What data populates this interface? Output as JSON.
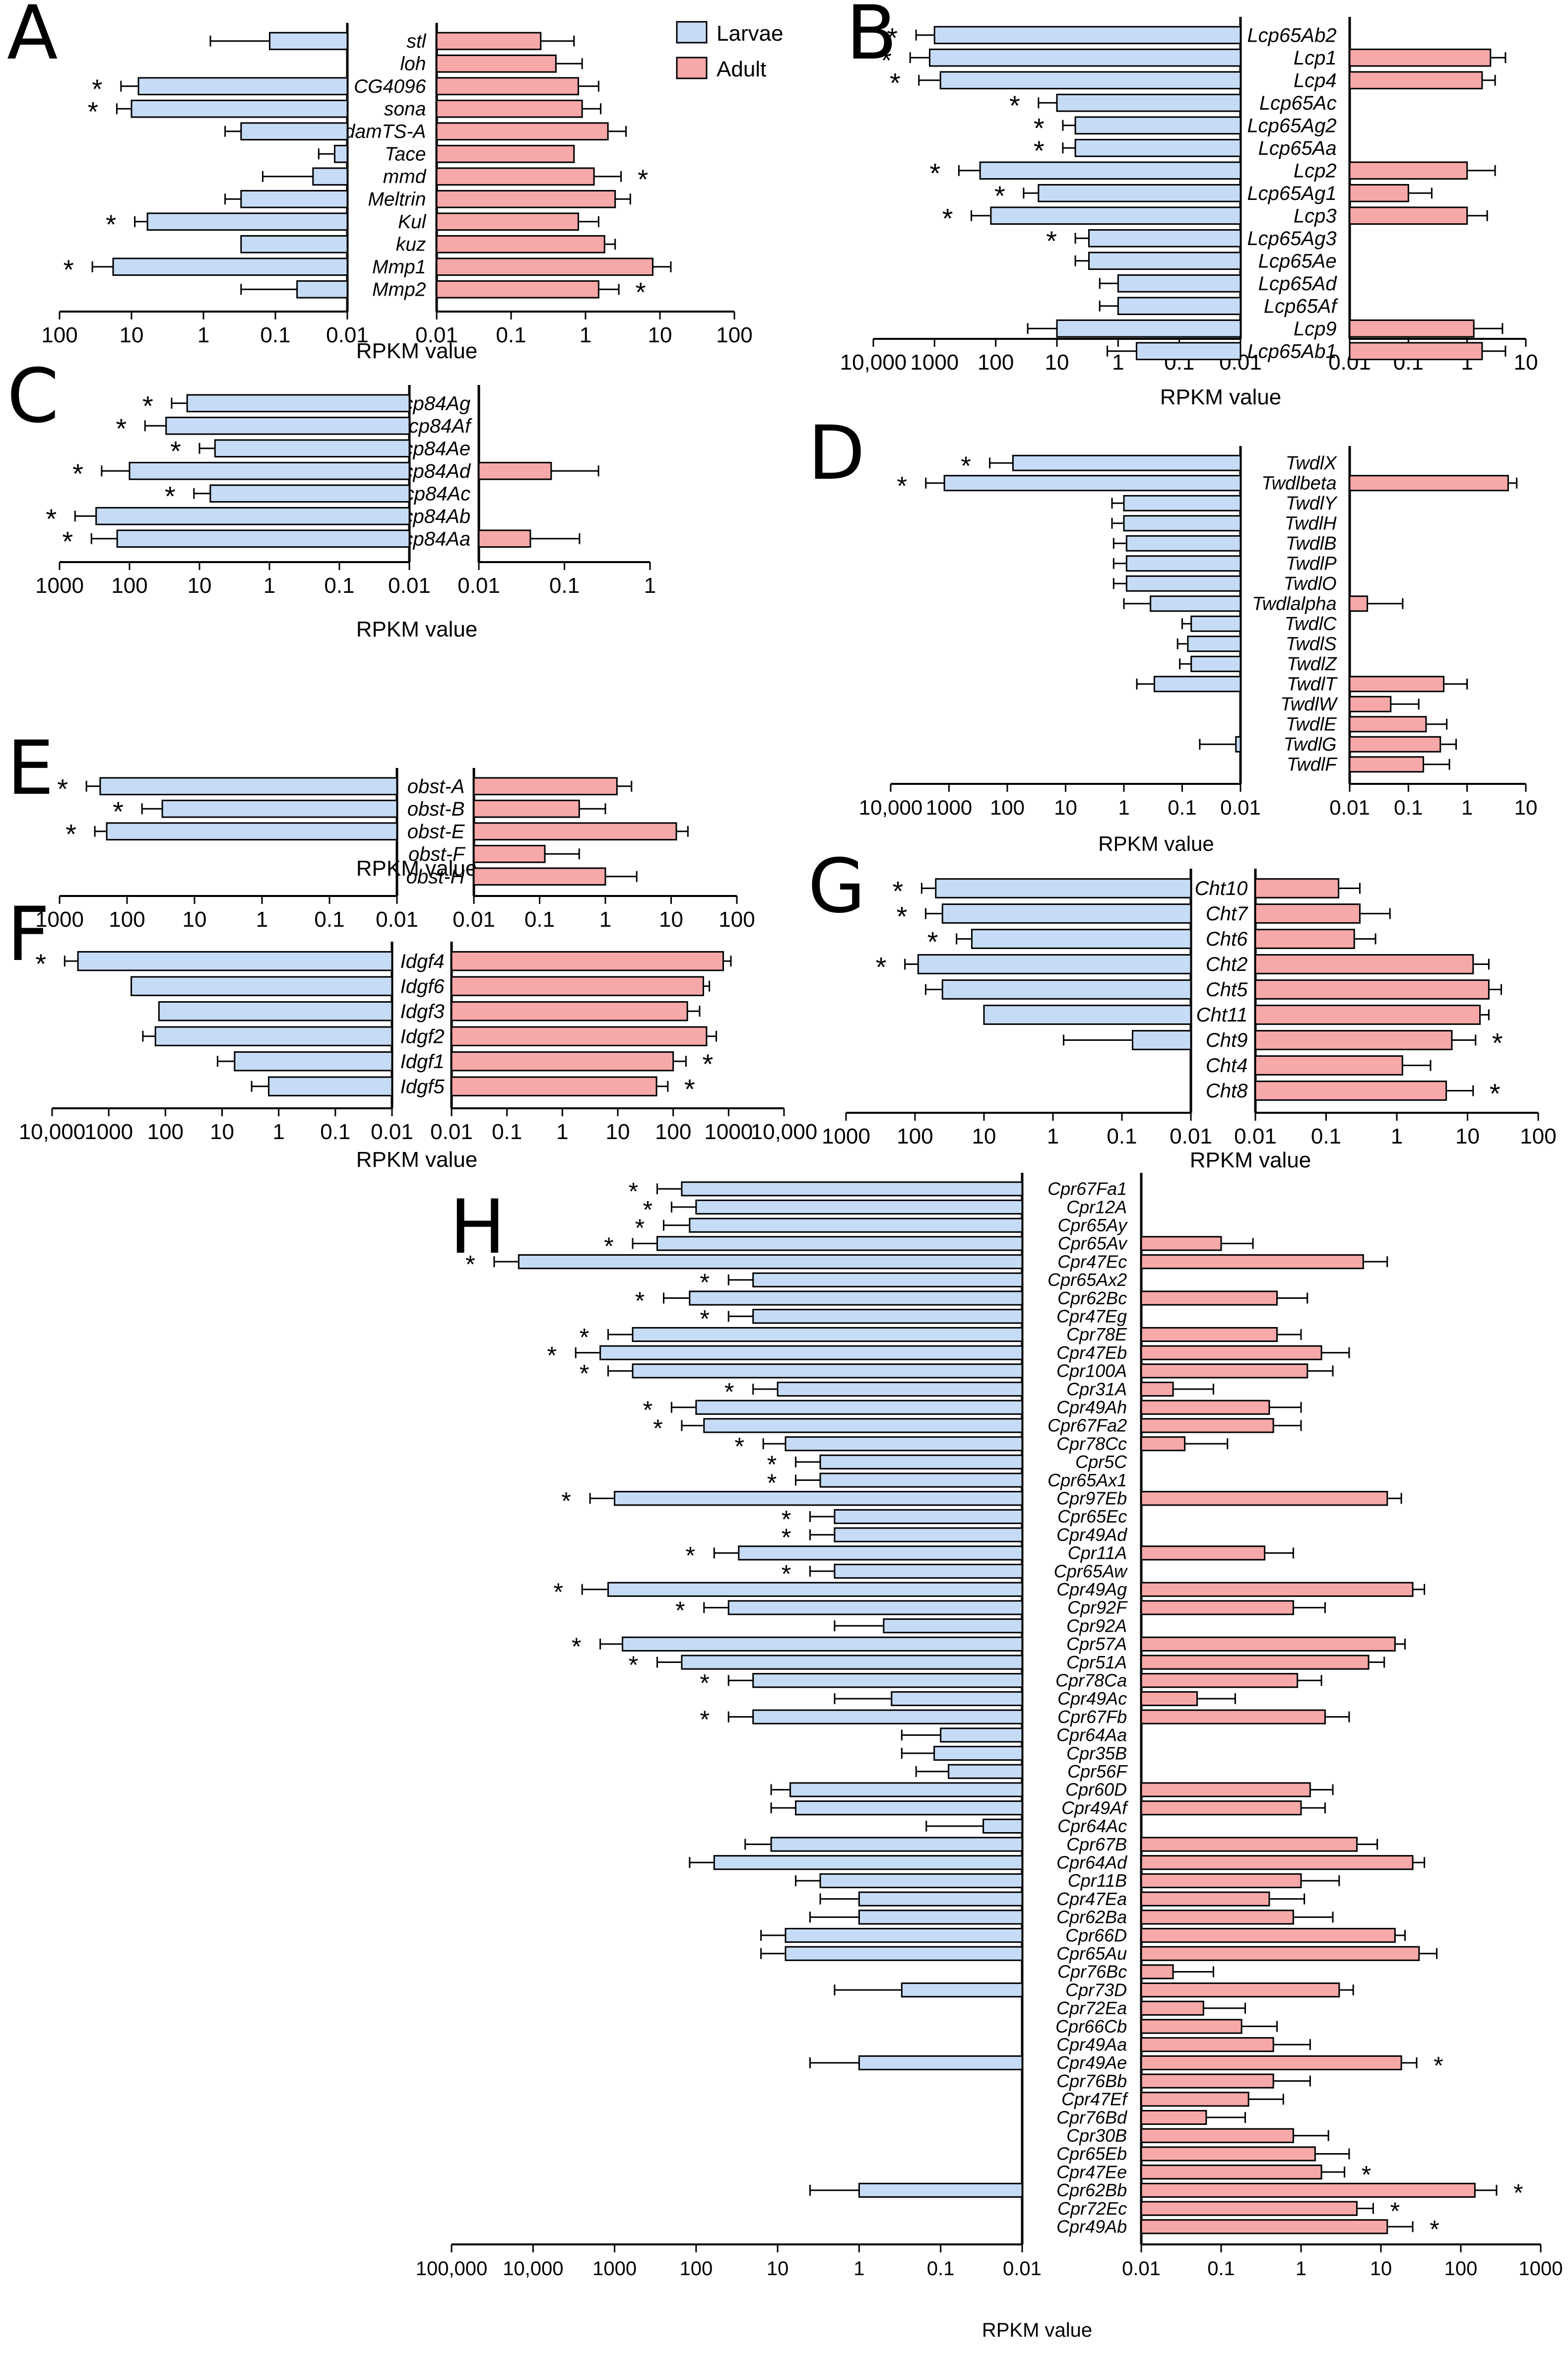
{
  "legend": [
    {
      "name": "Larvae",
      "color": "#c6dbf5"
    },
    {
      "name": "Adult",
      "color": "#f7a8a8"
    }
  ],
  "colors": {
    "larvae": "#c6dbf5",
    "adult": "#f7a8a8",
    "stroke": "#000000"
  },
  "chart_data": [
    {
      "panel": "A",
      "type": "bar",
      "orientation": "horizontal",
      "scale": "log",
      "xlabel": "RPKM value",
      "larvae_ticks": [
        "100",
        "10",
        "1",
        "0.1",
        "0.01"
      ],
      "adult_ticks": [
        "0.01",
        "0.1",
        "1",
        "10",
        "100"
      ],
      "larvae_range": [
        100,
        0.01
      ],
      "adult_range": [
        0.01,
        100
      ],
      "categories": [
        "stl",
        "loh",
        "CG4096",
        "sona",
        "AdamTS-A",
        "Tace",
        "mmd",
        "Meltrin",
        "Kul",
        "kuz",
        "Mmp1",
        "Mmp2"
      ],
      "larvae": [
        0.12,
        null,
        8,
        10,
        0.3,
        0.015,
        0.03,
        0.3,
        6,
        0.3,
        18,
        0.05
      ],
      "larvae_err": [
        0.8,
        null,
        14,
        16,
        0.5,
        0.025,
        0.15,
        0.5,
        9,
        null,
        35,
        0.3
      ],
      "adult": [
        0.25,
        0.4,
        0.8,
        0.9,
        2,
        0.7,
        1.3,
        2.5,
        0.8,
        1.8,
        8,
        1.5
      ],
      "adult_err": [
        0.7,
        0.9,
        1.5,
        1.6,
        3.5,
        null,
        3,
        4,
        1.5,
        2.5,
        14,
        2.8
      ],
      "larvae_sig": [
        false,
        false,
        true,
        true,
        false,
        false,
        false,
        false,
        true,
        false,
        true,
        false
      ],
      "adult_sig": [
        false,
        false,
        false,
        false,
        false,
        false,
        true,
        false,
        false,
        false,
        false,
        true
      ]
    },
    {
      "panel": "B",
      "type": "bar",
      "orientation": "horizontal",
      "scale": "log",
      "xlabel": "RPKM value",
      "larvae_ticks": [
        "10,000",
        "1000",
        "100",
        "10",
        "1",
        "0.1",
        "0.01"
      ],
      "adult_ticks": [
        "0.01",
        "0.1",
        "1",
        "10"
      ],
      "larvae_range": [
        10000,
        0.01
      ],
      "adult_range": [
        0.01,
        10
      ],
      "categories": [
        "Lcp65Ab2",
        "Lcp1",
        "Lcp4",
        "Lcp65Ac",
        "Lcp65Ag2",
        "Lcp65Aa",
        "Lcp2",
        "Lcp65Ag1",
        "Lcp3",
        "Lcp65Ag3",
        "Lcp65Ae",
        "Lcp65Ad",
        "Lcp65Af",
        "Lcp9",
        "Lcp65Ab1"
      ],
      "larvae": [
        1000,
        1200,
        800,
        10,
        5,
        5,
        180,
        20,
        120,
        3,
        3,
        1,
        1,
        10,
        0.5
      ],
      "larvae_err": [
        2000,
        2500,
        1800,
        20,
        8,
        8,
        400,
        35,
        250,
        5,
        5,
        2,
        2,
        30,
        1.5
      ],
      "adult": [
        null,
        2.5,
        1.8,
        null,
        null,
        null,
        1,
        0.1,
        1,
        null,
        null,
        null,
        null,
        1.3,
        1.8
      ],
      "adult_err": [
        null,
        4.5,
        3,
        null,
        null,
        null,
        3,
        0.25,
        2.2,
        null,
        null,
        null,
        null,
        4,
        4.5
      ],
      "larvae_sig": [
        true,
        true,
        true,
        true,
        true,
        true,
        true,
        true,
        true,
        true,
        false,
        false,
        false,
        false,
        false
      ],
      "adult_sig": [
        false,
        false,
        false,
        false,
        false,
        false,
        false,
        false,
        false,
        false,
        false,
        false,
        false,
        false,
        false
      ]
    },
    {
      "panel": "C",
      "type": "bar",
      "orientation": "horizontal",
      "scale": "log",
      "xlabel": "RPKM value",
      "larvae_ticks": [
        "1000",
        "100",
        "10",
        "1",
        "0.1",
        "0.01"
      ],
      "adult_ticks": [
        "0.01",
        "0.1",
        "1"
      ],
      "larvae_range": [
        1000,
        0.01
      ],
      "adult_range": [
        0.01,
        1
      ],
      "categories": [
        "Ccp84Ag",
        "Ccp84Af",
        "Ccp84Ae",
        "Ccp84Ad",
        "Ccp84Ac",
        "Ccp84Ab",
        "Ccp84Aa"
      ],
      "larvae": [
        15,
        30,
        6,
        100,
        7,
        300,
        150
      ],
      "larvae_err": [
        25,
        60,
        10,
        250,
        12,
        600,
        350
      ],
      "adult": [
        null,
        null,
        null,
        0.07,
        null,
        null,
        0.04
      ],
      "adult_err": [
        null,
        null,
        null,
        0.25,
        null,
        null,
        0.15
      ],
      "larvae_sig": [
        true,
        true,
        true,
        true,
        true,
        true,
        true
      ],
      "adult_sig": [
        false,
        false,
        false,
        false,
        false,
        false,
        false
      ]
    },
    {
      "panel": "D",
      "type": "bar",
      "orientation": "horizontal",
      "scale": "log",
      "xlabel": "RPKM value",
      "larvae_ticks": [
        "10,000",
        "1000",
        "100",
        "10",
        "1",
        "0.1",
        "0.01"
      ],
      "adult_ticks": [
        "0.01",
        "0.1",
        "1",
        "10"
      ],
      "larvae_range": [
        10000,
        0.01
      ],
      "adult_range": [
        0.01,
        10
      ],
      "categories": [
        "TwdlX",
        "Twdlbeta",
        "TwdlY",
        "TwdlH",
        "TwdlB",
        "TwdlP",
        "TwdlO",
        "Twdlalpha",
        "TwdlC",
        "TwdlS",
        "TwdlZ",
        "TwdlT",
        "TwdlW",
        "TwdlE",
        "TwdlG",
        "TwdlF"
      ],
      "larvae": [
        80,
        1200,
        1,
        1,
        0.9,
        0.9,
        0.9,
        0.35,
        0.07,
        0.08,
        0.07,
        0.3,
        null,
        null,
        0.012,
        null
      ],
      "larvae_err": [
        200,
        2500,
        1.6,
        1.6,
        1.5,
        1.5,
        1.5,
        1,
        0.1,
        0.12,
        0.11,
        0.6,
        null,
        null,
        0.05,
        null
      ],
      "adult": [
        null,
        5,
        null,
        null,
        null,
        null,
        null,
        0.02,
        null,
        null,
        null,
        0.4,
        0.05,
        0.2,
        0.35,
        0.18
      ],
      "adult_err": [
        null,
        7,
        null,
        null,
        null,
        null,
        null,
        0.08,
        null,
        null,
        null,
        1,
        0.15,
        0.45,
        0.65,
        0.5
      ],
      "larvae_sig": [
        true,
        true,
        false,
        false,
        false,
        false,
        false,
        false,
        false,
        false,
        false,
        false,
        false,
        false,
        false,
        false
      ],
      "adult_sig": [
        false,
        false,
        false,
        false,
        false,
        false,
        false,
        false,
        false,
        false,
        false,
        false,
        false,
        false,
        false,
        false
      ]
    },
    {
      "panel": "E",
      "type": "bar",
      "orientation": "horizontal",
      "scale": "log",
      "xlabel": "RPKM value",
      "larvae_ticks": [
        "1000",
        "100",
        "10",
        "1",
        "0.1",
        "0.01"
      ],
      "adult_ticks": [
        "0.01",
        "0.1",
        "1",
        "10",
        "100"
      ],
      "larvae_range": [
        1000,
        0.01
      ],
      "adult_range": [
        0.01,
        100
      ],
      "categories": [
        "obst-A",
        "obst-B",
        "obst-E",
        "obst-F",
        "obst-H"
      ],
      "larvae": [
        250,
        30,
        200,
        null,
        null
      ],
      "larvae_err": [
        400,
        60,
        300,
        null,
        null
      ],
      "adult": [
        1.5,
        0.4,
        12,
        0.12,
        1
      ],
      "adult_err": [
        2.5,
        1,
        18,
        0.4,
        3
      ],
      "larvae_sig": [
        true,
        true,
        true,
        false,
        false
      ],
      "adult_sig": [
        false,
        false,
        false,
        false,
        false
      ]
    },
    {
      "panel": "F",
      "type": "bar",
      "orientation": "horizontal",
      "scale": "log",
      "xlabel": "RPKM value",
      "larvae_ticks": [
        "10,000",
        "1000",
        "100",
        "10",
        "1",
        "0.1",
        "0.01"
      ],
      "adult_ticks": [
        "0.01",
        "0.1",
        "1",
        "10",
        "100",
        "1000",
        "10,000"
      ],
      "larvae_range": [
        10000,
        0.01
      ],
      "adult_range": [
        0.01,
        10000
      ],
      "categories": [
        "Idgf4",
        "Idgf6",
        "Idgf3",
        "Idgf2",
        "Idgf1",
        "Idgf5"
      ],
      "larvae": [
        3500,
        400,
        130,
        150,
        6,
        1.5
      ],
      "larvae_err": [
        6000,
        null,
        null,
        250,
        12,
        3
      ],
      "adult": [
        800,
        350,
        180,
        400,
        100,
        50
      ],
      "adult_err": [
        1100,
        450,
        300,
        600,
        170,
        80
      ],
      "larvae_sig": [
        true,
        false,
        false,
        false,
        false,
        false
      ],
      "adult_sig": [
        false,
        false,
        false,
        false,
        true,
        true
      ]
    },
    {
      "panel": "G",
      "type": "bar",
      "orientation": "horizontal",
      "scale": "log",
      "xlabel": "RPKM value",
      "larvae_ticks": [
        "1000",
        "100",
        "10",
        "1",
        "0.1",
        "0.01"
      ],
      "adult_ticks": [
        "0.01",
        "0.1",
        "1",
        "10",
        "100"
      ],
      "larvae_range": [
        1000,
        0.01
      ],
      "adult_range": [
        0.01,
        100
      ],
      "categories": [
        "Cht10",
        "Cht7",
        "Cht6",
        "Cht2",
        "Cht5",
        "Cht11",
        "Cht9",
        "Cht4",
        "Cht8"
      ],
      "larvae": [
        50,
        40,
        15,
        90,
        40,
        10,
        0.07,
        null,
        null
      ],
      "larvae_err": [
        80,
        70,
        25,
        140,
        70,
        null,
        0.7,
        null,
        null
      ],
      "adult": [
        0.15,
        0.3,
        0.25,
        12,
        20,
        15,
        6,
        1.2,
        5
      ],
      "adult_err": [
        0.3,
        0.8,
        0.5,
        20,
        30,
        20,
        13,
        3,
        12
      ],
      "larvae_sig": [
        true,
        true,
        true,
        true,
        false,
        false,
        false,
        false,
        false
      ],
      "adult_sig": [
        false,
        false,
        false,
        false,
        false,
        false,
        true,
        false,
        true
      ]
    },
    {
      "panel": "H",
      "type": "bar",
      "orientation": "horizontal",
      "scale": "log",
      "xlabel": "RPKM value",
      "larvae_ticks": [
        "100,000",
        "10,000",
        "1000",
        "100",
        "10",
        "1",
        "0.1",
        "0.01"
      ],
      "adult_ticks": [
        "0.01",
        "0.1",
        "1",
        "10",
        "100",
        "1000"
      ],
      "larvae_range": [
        100000,
        0.01
      ],
      "adult_range": [
        0.01,
        1000
      ],
      "categories": [
        "Cpr67Fa1",
        "Cpr12A",
        "Cpr65Ay",
        "Cpr65Av",
        "Cpr47Ec",
        "Cpr65Ax2",
        "Cpr62Bc",
        "Cpr47Eg",
        "Cpr78E",
        "Cpr47Eb",
        "Cpr100A",
        "Cpr31A",
        "Cpr49Ah",
        "Cpr67Fa2",
        "Cpr78Cc",
        "Cpr5C",
        "Cpr65Ax1",
        "Cpr97Eb",
        "Cpr65Ec",
        "Cpr49Ad",
        "Cpr11A",
        "Cpr65Aw",
        "Cpr49Ag",
        "Cpr92F",
        "Cpr92A",
        "Cpr57A",
        "Cpr51A",
        "Cpr78Ca",
        "Cpr49Ac",
        "Cpr67Fb",
        "Cpr64Aa",
        "Cpr35B",
        "Cpr56F",
        "Cpr60D",
        "Cpr49Af",
        "Cpr64Ac",
        "Cpr67B",
        "Cpr64Ad",
        "Cpr11B",
        "Cpr47Ea",
        "Cpr62Ba",
        "Cpr66D",
        "Cpr65Au",
        "Cpr76Bc",
        "Cpr73D",
        "Cpr72Ea",
        "Cpr66Cb",
        "Cpr49Aa",
        "Cpr49Ae",
        "Cpr76Bb",
        "Cpr47Ef",
        "Cpr76Bd",
        "Cpr30B",
        "Cpr65Eb",
        "Cpr47Ee",
        "Cpr62Bb",
        "Cpr72Ec",
        "Cpr49Ab"
      ],
      "larvae": [
        150,
        100,
        120,
        300,
        15000,
        20,
        120,
        20,
        600,
        1500,
        600,
        10,
        100,
        80,
        8,
        3,
        3,
        1000,
        2,
        2,
        30,
        2,
        1200,
        40,
        0.5,
        800,
        150,
        20,
        0.4,
        20,
        0.1,
        0.12,
        0.08,
        7,
        6,
        0.03,
        12,
        60,
        3,
        1,
        1,
        8,
        8,
        null,
        0.3,
        null,
        null,
        null,
        1,
        null,
        null,
        null,
        null,
        null,
        null,
        1,
        null,
        null
      ],
      "larvae_err": [
        300,
        200,
        250,
        600,
        30000,
        40,
        250,
        40,
        1200,
        3000,
        1200,
        20,
        200,
        150,
        15,
        6,
        6,
        2000,
        4,
        4,
        60,
        4,
        2500,
        80,
        2,
        1500,
        300,
        40,
        2,
        40,
        0.3,
        0.3,
        0.2,
        12,
        12,
        0.15,
        25,
        120,
        6,
        3,
        4,
        16,
        16,
        null,
        2,
        null,
        null,
        null,
        4,
        null,
        null,
        null,
        null,
        null,
        null,
        4,
        null,
        null
      ],
      "adult": [
        null,
        null,
        null,
        0.1,
        6,
        null,
        0.5,
        null,
        0.5,
        1.8,
        1.2,
        0.025,
        0.4,
        0.45,
        0.035,
        null,
        null,
        12,
        null,
        null,
        0.35,
        null,
        25,
        0.8,
        null,
        15,
        7,
        0.9,
        0.05,
        2,
        null,
        null,
        null,
        1.3,
        1,
        null,
        5,
        25,
        1,
        0.4,
        0.8,
        15,
        30,
        0.025,
        3,
        0.06,
        0.18,
        0.45,
        18,
        0.45,
        0.22,
        0.065,
        0.8,
        1.5,
        1.8,
        150,
        5,
        12
      ],
      "adult_err": [
        null,
        null,
        null,
        0.25,
        12,
        null,
        1.2,
        null,
        1,
        4,
        2.5,
        0.08,
        1,
        1,
        0.12,
        null,
        null,
        18,
        null,
        null,
        0.8,
        null,
        35,
        2,
        null,
        20,
        11,
        1.8,
        0.15,
        4,
        null,
        null,
        null,
        2.5,
        2,
        null,
        9,
        35,
        3,
        1.1,
        2.5,
        20,
        50,
        0.08,
        4.5,
        0.2,
        0.5,
        1.3,
        28,
        1.3,
        0.6,
        0.2,
        2.2,
        4,
        3.5,
        280,
        8,
        25
      ],
      "larvae_sig": [
        true,
        true,
        true,
        true,
        true,
        true,
        true,
        true,
        true,
        true,
        true,
        true,
        true,
        true,
        true,
        true,
        true,
        true,
        true,
        true,
        true,
        true,
        true,
        true,
        false,
        true,
        true,
        true,
        false,
        true,
        false,
        false,
        false,
        false,
        false,
        false,
        false,
        false,
        false,
        false,
        false,
        false,
        false,
        false,
        false,
        false,
        false,
        false,
        false,
        false,
        false,
        false,
        false,
        false,
        false,
        false,
        false,
        false
      ],
      "adult_sig": [
        false,
        false,
        false,
        false,
        false,
        false,
        false,
        false,
        false,
        false,
        false,
        false,
        false,
        false,
        false,
        false,
        false,
        false,
        false,
        false,
        false,
        false,
        false,
        false,
        false,
        false,
        false,
        false,
        false,
        false,
        false,
        false,
        false,
        false,
        false,
        false,
        false,
        false,
        false,
        false,
        false,
        false,
        false,
        false,
        false,
        false,
        false,
        false,
        true,
        false,
        false,
        false,
        false,
        false,
        true,
        true,
        true,
        true
      ]
    }
  ]
}
